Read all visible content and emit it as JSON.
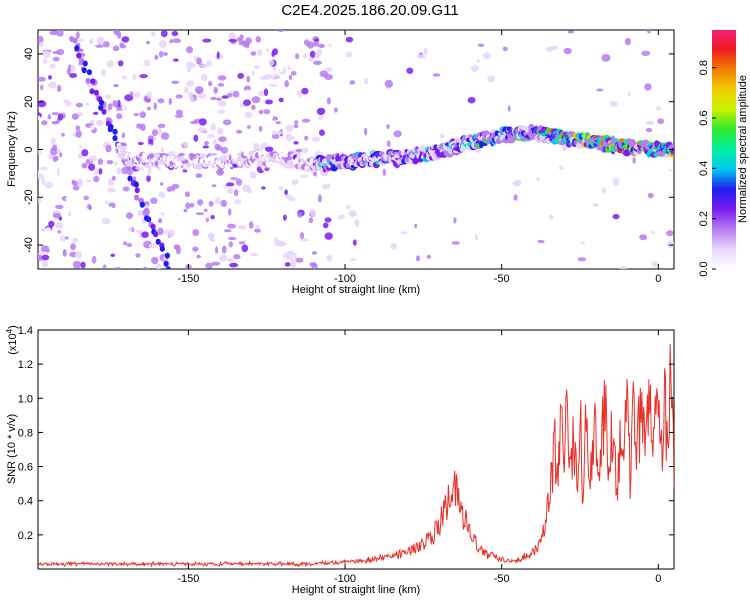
{
  "title": "C2E4.2025.186.20.09.G11",
  "chart_data": [
    {
      "type": "heatmap",
      "xlabel": "Height of straight line (km)",
      "ylabel": "Frequency (Hz)",
      "xlim": [
        -198,
        5
      ],
      "ylim": [
        -50,
        50
      ],
      "xticks": [
        -150,
        -100,
        -50,
        0
      ],
      "yticks": [
        -40,
        -20,
        0,
        20,
        40
      ],
      "colorbar": {
        "label": "Normalized spectral amplitude",
        "range": [
          0.0,
          0.95
        ],
        "ticks": [
          0.0,
          0.2,
          0.4,
          0.6,
          0.8
        ],
        "colors": [
          "#ffffff",
          "#e7d4fa",
          "#b67cf0",
          "#7a1df0",
          "#1e1ef0",
          "#00c8f0",
          "#00f0a0",
          "#2ce82c",
          "#c8f000",
          "#f0d000",
          "#f08000",
          "#f01e1e",
          "#f01e78"
        ]
      },
      "ridge": [
        {
          "x": -170,
          "y": -4
        },
        {
          "x": -160,
          "y": -5
        },
        {
          "x": -150,
          "y": -5
        },
        {
          "x": -140,
          "y": -5
        },
        {
          "x": -130,
          "y": -4
        },
        {
          "x": -120,
          "y": -4
        },
        {
          "x": -110,
          "y": -6
        },
        {
          "x": -100,
          "y": -5
        },
        {
          "x": -90,
          "y": -4
        },
        {
          "x": -80,
          "y": -3
        },
        {
          "x": -70,
          "y": -1
        },
        {
          "x": -60,
          "y": 3
        },
        {
          "x": -50,
          "y": 6
        },
        {
          "x": -40,
          "y": 7
        },
        {
          "x": -30,
          "y": 5
        },
        {
          "x": -20,
          "y": 3
        },
        {
          "x": -10,
          "y": 1
        },
        {
          "x": 0,
          "y": 0
        },
        {
          "x": 5,
          "y": 0
        }
      ],
      "streak": [
        {
          "x": -188,
          "y": 48
        },
        {
          "x": -180,
          "y": 22
        },
        {
          "x": -172,
          "y": 0
        },
        {
          "x": -168,
          "y": -15
        },
        {
          "x": -160,
          "y": -38
        },
        {
          "x": -157,
          "y": -50
        }
      ]
    },
    {
      "type": "line",
      "xlabel": "Height of straight line (km)",
      "ylabel": "SNR (10 * v/v)",
      "scale_label": "(x10",
      "scale_exp": "4",
      "scale_close": ")",
      "xlim": [
        -198,
        5
      ],
      "ylim": [
        0,
        1.4
      ],
      "xticks": [
        -150,
        -100,
        -50,
        0
      ],
      "yticks": [
        0.2,
        0.4,
        0.6,
        0.8,
        1.0,
        1.2,
        1.4
      ],
      "ytick_labels": [
        "0.2",
        "0.4",
        "0.6",
        "0.8",
        "1.0",
        "1.2",
        "1.4"
      ],
      "series": [
        {
          "color": "#e8302a",
          "x": [
            -198,
            -190,
            -180,
            -170,
            -160,
            -150,
            -140,
            -130,
            -120,
            -110,
            -105,
            -100,
            -95,
            -90,
            -85,
            -80,
            -75,
            -72,
            -70,
            -68,
            -66,
            -65,
            -64,
            -62,
            -60,
            -58,
            -56,
            -54,
            -52,
            -50,
            -48,
            -46,
            -44,
            -42,
            -40,
            -38,
            -36,
            -35,
            -34,
            -33,
            -32,
            -31,
            -30,
            -29,
            -28,
            -27,
            -26,
            -25,
            -24,
            -23,
            -22,
            -21,
            -20,
            -19,
            -18,
            -17,
            -16,
            -15,
            -14,
            -13,
            -12,
            -11,
            -10,
            -9,
            -8,
            -7,
            -6,
            -5,
            -4,
            -3,
            -2,
            -1,
            0,
            1,
            2,
            3,
            4,
            5
          ],
          "y": [
            0.03,
            0.03,
            0.03,
            0.03,
            0.03,
            0.03,
            0.03,
            0.03,
            0.03,
            0.03,
            0.04,
            0.04,
            0.05,
            0.06,
            0.08,
            0.1,
            0.15,
            0.2,
            0.25,
            0.35,
            0.45,
            0.48,
            0.4,
            0.3,
            0.2,
            0.15,
            0.1,
            0.08,
            0.07,
            0.06,
            0.05,
            0.05,
            0.06,
            0.08,
            0.1,
            0.15,
            0.25,
            0.4,
            0.55,
            0.7,
            0.6,
            0.85,
            0.65,
            1.05,
            0.55,
            0.75,
            0.5,
            0.9,
            0.4,
            0.95,
            0.45,
            0.7,
            0.85,
            0.5,
            0.75,
            1.0,
            0.45,
            0.8,
            0.6,
            0.55,
            0.75,
            0.7,
            0.9,
            0.55,
            0.95,
            0.8,
            0.85,
            0.95,
            0.75,
            0.9,
            0.8,
            0.95,
            0.85,
            0.7,
            1.0,
            0.65,
            1.4,
            0.55
          ]
        }
      ]
    }
  ]
}
